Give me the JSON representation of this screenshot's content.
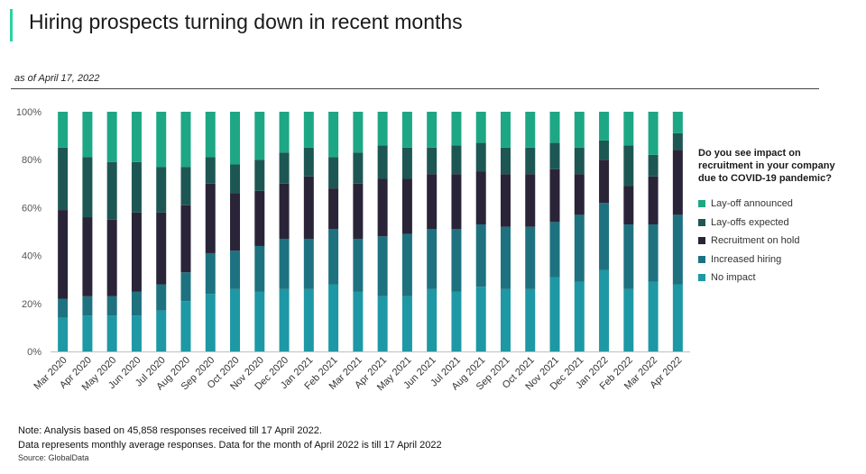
{
  "header": {
    "title": "Hiring prospects turning down in recent months",
    "as_of": "as of April 17, 2022"
  },
  "legend": {
    "question": "Do you see impact on recruitment in your company due to COVID-19 pandemic?",
    "items": [
      {
        "label": "Lay-off announced",
        "color": "#1ea784"
      },
      {
        "label": "Lay-offs expected",
        "color": "#1d5754"
      },
      {
        "label": "Recruitment on hold",
        "color": "#2a2438"
      },
      {
        "label": "Increased hiring",
        "color": "#1e7280"
      },
      {
        "label": "No impact",
        "color": "#1e98a5"
      }
    ]
  },
  "footer": {
    "note_line1": "Note: Analysis based on 45,858 responses received till 17 April 2022.",
    "note_line2": "Data represents monthly average responses. Data for the month of April 2022 is till 17 April 2022",
    "source": "Source: GlobalData"
  },
  "chart_data": {
    "type": "bar",
    "stacked": true,
    "ylim": [
      0,
      100
    ],
    "yticks": [
      "0%",
      "20%",
      "40%",
      "60%",
      "80%",
      "100%"
    ],
    "categories": [
      "Mar 2020",
      "Apr 2020",
      "May 2020",
      "Jun 2020",
      "Jul 2020",
      "Aug 2020",
      "Sep 2020",
      "Oct 2020",
      "Nov 2020",
      "Dec 2020",
      "Jan 2021",
      "Feb 2021",
      "Mar 2021",
      "Apr 2021",
      "May 2021",
      "Jun 2021",
      "Jul 2021",
      "Aug 2021",
      "Sep 2021",
      "Oct 2021",
      "Nov 2021",
      "Dec 2021",
      "Jan 2022",
      "Feb 2022",
      "Mar 2022",
      "Apr 2022"
    ],
    "series": [
      {
        "name": "No impact",
        "color": "#1e98a5",
        "values": [
          14,
          15,
          15,
          15,
          17,
          21,
          24,
          26,
          25,
          26,
          26,
          28,
          25,
          23,
          23,
          26,
          25,
          27,
          26,
          26,
          31,
          29,
          34,
          26,
          29,
          28
        ]
      },
      {
        "name": "Increased hiring",
        "color": "#1e7280",
        "values": [
          8,
          8,
          8,
          10,
          11,
          12,
          17,
          16,
          19,
          21,
          21,
          23,
          22,
          25,
          26,
          25,
          26,
          26,
          26,
          26,
          23,
          28,
          28,
          27,
          24,
          29
        ]
      },
      {
        "name": "Recruitment on hold",
        "color": "#2a2438",
        "values": [
          37,
          33,
          32,
          33,
          30,
          28,
          29,
          24,
          23,
          23,
          26,
          17,
          23,
          24,
          23,
          23,
          23,
          22,
          22,
          22,
          22,
          17,
          18,
          16,
          20,
          27
        ]
      },
      {
        "name": "Lay-offs expected",
        "color": "#1d5754",
        "values": [
          26,
          25,
          24,
          21,
          19,
          16,
          11,
          12,
          13,
          13,
          12,
          13,
          13,
          14,
          13,
          11,
          12,
          12,
          11,
          11,
          11,
          11,
          8,
          17,
          9,
          7
        ]
      },
      {
        "name": "Lay-off announced",
        "color": "#1ea784",
        "values": [
          15,
          19,
          21,
          21,
          23,
          23,
          19,
          22,
          20,
          17,
          15,
          19,
          17,
          14,
          15,
          15,
          14,
          13,
          15,
          15,
          13,
          15,
          12,
          14,
          18,
          9
        ]
      }
    ]
  }
}
